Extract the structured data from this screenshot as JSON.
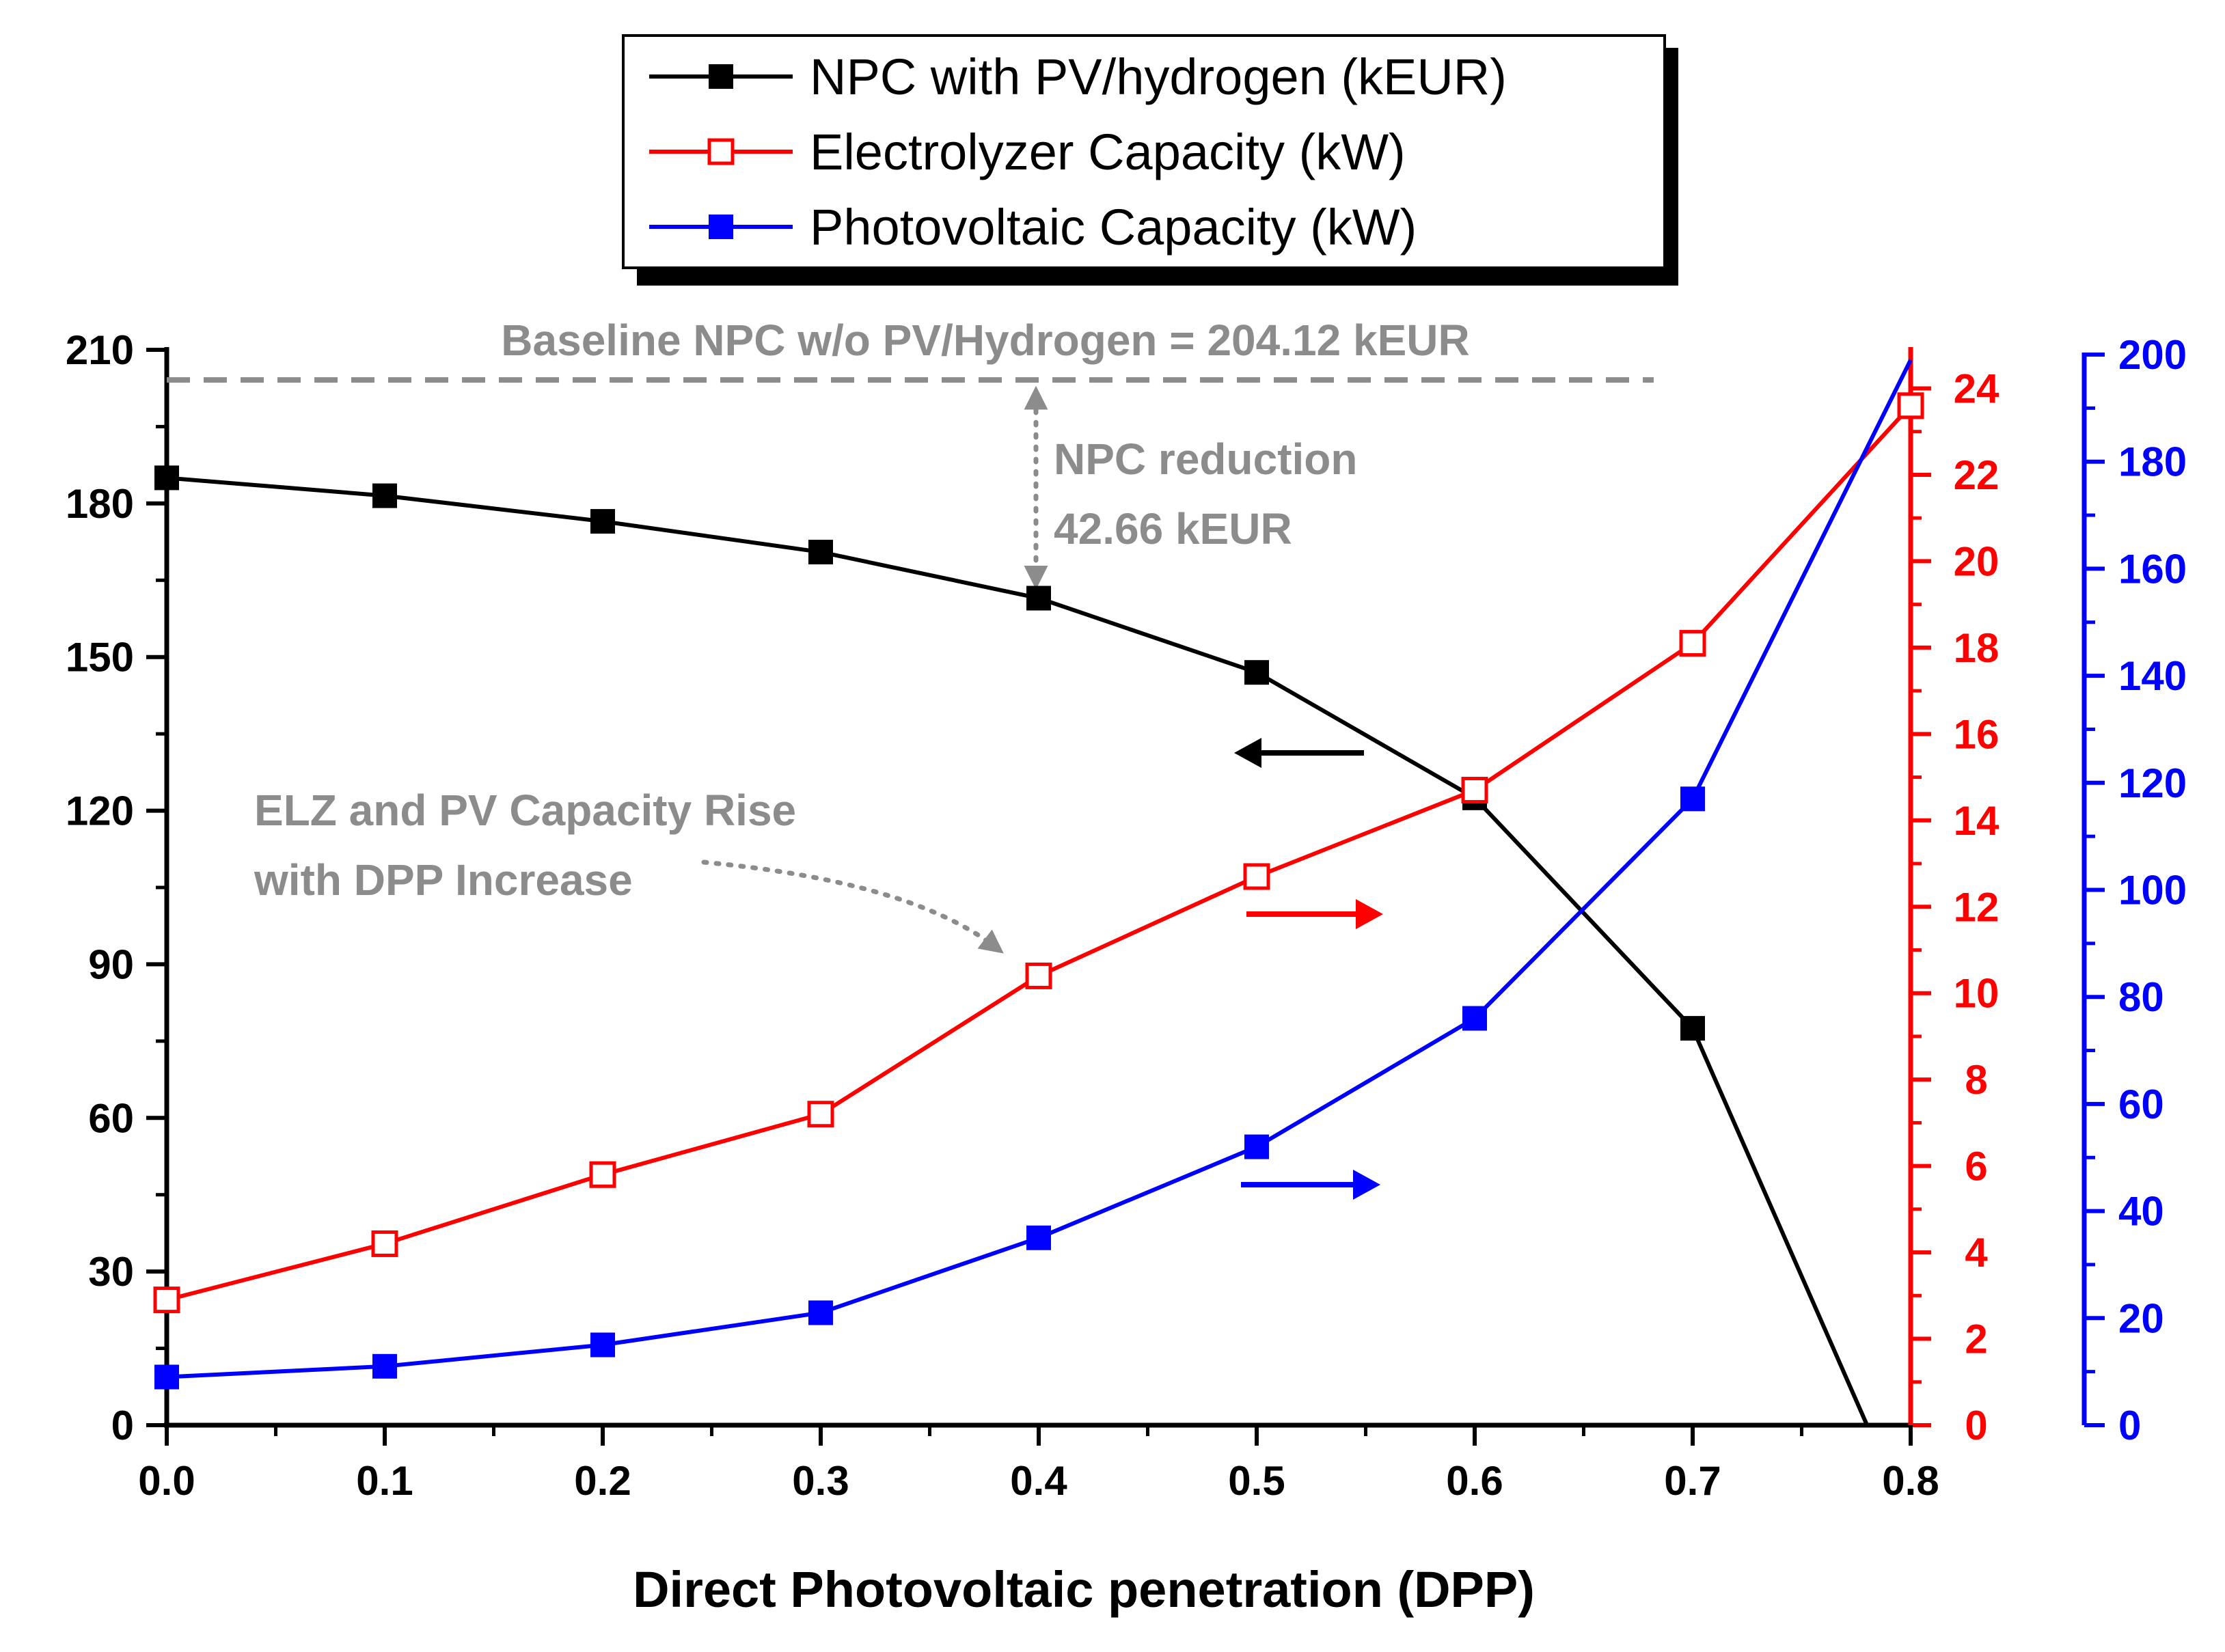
{
  "chart_data": {
    "type": "line",
    "xlabel": "Direct Photovoltaic penetration (DPP)",
    "x": [
      0.0,
      0.1,
      0.2,
      0.3,
      0.4,
      0.5,
      0.6,
      0.7,
      0.8
    ],
    "xlim": [
      0.0,
      0.8
    ],
    "xticks": [
      "0.0",
      "0.1",
      "0.2",
      "0.3",
      "0.4",
      "0.5",
      "0.6",
      "0.7",
      "0.8"
    ],
    "axes": {
      "left": {
        "ylim": [
          0,
          210
        ],
        "ticks": [
          "0",
          "30",
          "60",
          "90",
          "120",
          "150",
          "180",
          "210"
        ],
        "color": "#000000"
      },
      "right1": {
        "ylim": [
          0,
          25
        ],
        "ticks": [
          "0",
          "2",
          "4",
          "6",
          "8",
          "10",
          "12",
          "14",
          "16",
          "18",
          "20",
          "22",
          "24"
        ],
        "color": "#ff0000"
      },
      "right2": {
        "ylim": [
          0,
          200
        ],
        "ticks": [
          "0",
          "20",
          "40",
          "60",
          "80",
          "100",
          "120",
          "140",
          "160",
          "180",
          "200"
        ],
        "color": "#0000ff"
      }
    },
    "series": [
      {
        "name": "NPC with PV/hydrogen (kEUR)",
        "axis": "left",
        "color": "#000000",
        "marker": "filled-square",
        "x": [
          0.0,
          0.1,
          0.2,
          0.3,
          0.4,
          0.5,
          0.6,
          0.7,
          0.78
        ],
        "values": [
          185,
          181.5,
          176.5,
          170.5,
          161.5,
          147,
          122.5,
          77.5,
          0
        ],
        "marked": [
          true,
          true,
          true,
          true,
          true,
          true,
          true,
          true,
          false
        ]
      },
      {
        "name": "Electrolyzer Capacity (kW)",
        "axis": "right1",
        "color": "#ff0000",
        "marker": "open-square",
        "x": [
          0.0,
          0.1,
          0.2,
          0.3,
          0.4,
          0.5,
          0.6,
          0.7,
          0.8
        ],
        "values": [
          2.9,
          4.2,
          5.8,
          7.2,
          10.4,
          12.7,
          14.7,
          18.1,
          23.6
        ],
        "marked": [
          true,
          true,
          true,
          true,
          true,
          true,
          true,
          true,
          true
        ]
      },
      {
        "name": "Photovoltaic Capacity (kW)",
        "axis": "right2",
        "color": "#0000ff",
        "marker": "filled-square",
        "x": [
          0.0,
          0.1,
          0.2,
          0.3,
          0.4,
          0.5,
          0.6,
          0.7,
          0.8
        ],
        "values": [
          9,
          11,
          15,
          21,
          35,
          52,
          76,
          117,
          199
        ],
        "marked": [
          true,
          true,
          true,
          true,
          true,
          true,
          true,
          true,
          false
        ]
      }
    ],
    "baseline": {
      "value": 204.12,
      "label": "Baseline NPC w/o PV/Hydrogen = 204.12 kEUR",
      "color": "#8c8c8c"
    },
    "annotations": {
      "npc_reduction_line1": "NPC reduction",
      "npc_reduction_line2": "42.66 kEUR",
      "rise_line1": "ELZ and PV Capacity Rise",
      "rise_line2": "with DPP Increase"
    },
    "legend_position": "top-center"
  }
}
